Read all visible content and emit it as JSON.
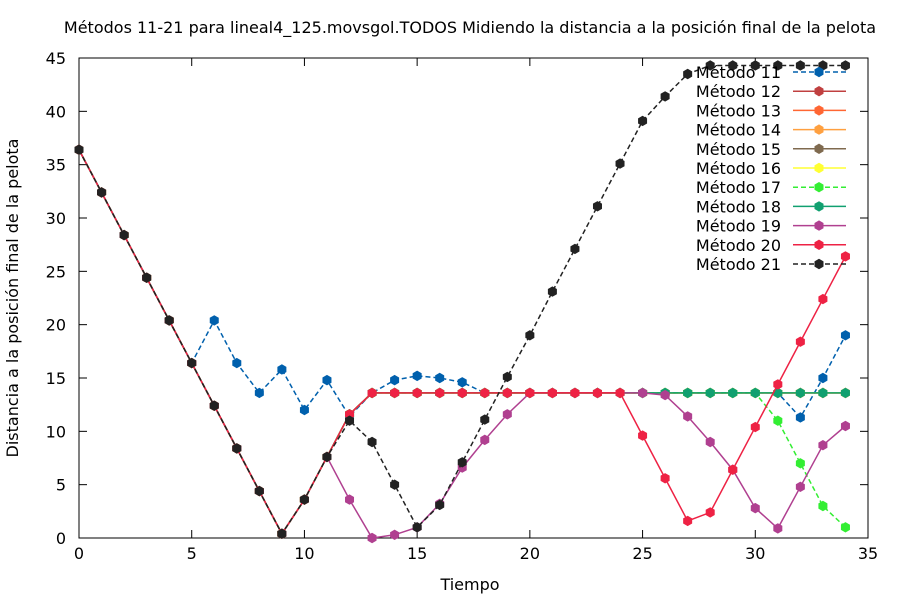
{
  "chart_data": {
    "type": "line",
    "title": "Métodos 11-21 para lineal4_125.movsgol.TODOS Midiendo la distancia a la posición final de la pelota",
    "xlabel": "Tiempo",
    "ylabel": "Distancia a la posición final de la pelota",
    "xlim": [
      0,
      35
    ],
    "ylim": [
      0,
      45
    ],
    "xticks": [
      0,
      5,
      10,
      15,
      20,
      25,
      30,
      35
    ],
    "yticks": [
      0,
      5,
      10,
      15,
      20,
      25,
      30,
      35,
      40,
      45
    ],
    "grid": false,
    "legend_position": "top-right",
    "series": [
      {
        "name": "Método 11",
        "color": "#0060ad",
        "dashed": true,
        "values": [
          36.4,
          32.4,
          28.4,
          24.4,
          20.4,
          16.4,
          20.4,
          16.4,
          13.6,
          15.8,
          12.0,
          14.8,
          11.4,
          13.6,
          14.8,
          15.2,
          15.0,
          14.6,
          13.6,
          13.6,
          13.6,
          13.6,
          13.6,
          13.6,
          13.6,
          13.6,
          13.6,
          13.6,
          13.6,
          13.6,
          13.6,
          13.6,
          11.3,
          15.0,
          19.0
        ]
      },
      {
        "name": "Método 12",
        "color": "#c04040",
        "dashed": false,
        "values": [
          36.4,
          32.4,
          28.4,
          24.4,
          20.4,
          16.4,
          12.4,
          8.4,
          4.4,
          0.4,
          3.6,
          7.6,
          11.6,
          13.6,
          13.6,
          13.6,
          13.6,
          13.6,
          13.6,
          13.6,
          13.6,
          13.6,
          13.6,
          13.6,
          13.6,
          13.6,
          13.6,
          13.6,
          13.6,
          13.6,
          13.6,
          13.6,
          13.6,
          13.6,
          13.6
        ]
      },
      {
        "name": "Método 13",
        "color": "#ff6633",
        "dashed": false,
        "values": [
          36.4,
          32.4,
          28.4,
          24.4,
          20.4,
          16.4,
          12.4,
          8.4,
          4.4,
          0.4,
          3.6,
          7.6,
          11.6,
          13.6,
          13.6,
          13.6,
          13.6,
          13.6,
          13.6,
          13.6,
          13.6,
          13.6,
          13.6,
          13.6,
          13.6,
          13.6,
          13.6,
          13.6,
          13.6,
          13.6,
          13.6,
          13.6,
          13.6,
          13.6,
          13.6
        ]
      },
      {
        "name": "Método 14",
        "color": "#ffa040",
        "dashed": false,
        "values": [
          36.4,
          32.4,
          28.4,
          24.4,
          20.4,
          16.4,
          12.4,
          8.4,
          4.4,
          0.4,
          3.6,
          7.6,
          11.6,
          13.6,
          13.6,
          13.6,
          13.6,
          13.6,
          13.6,
          13.6,
          13.6,
          13.6,
          13.6,
          13.6,
          13.6,
          13.6,
          13.6,
          13.6,
          13.6,
          13.6,
          13.6,
          13.6,
          13.6,
          13.6,
          13.6
        ]
      },
      {
        "name": "Método 15",
        "color": "#7f6a4f",
        "dashed": false,
        "values": [
          36.4,
          32.4,
          28.4,
          24.4,
          20.4,
          16.4,
          12.4,
          8.4,
          4.4,
          0.4,
          3.6,
          7.6,
          11.6,
          13.6,
          13.6,
          13.6,
          13.6,
          13.6,
          13.6,
          13.6,
          13.6,
          13.6,
          13.6,
          13.6,
          13.6,
          13.6,
          13.6,
          13.6,
          13.6,
          13.6,
          13.6,
          13.6,
          13.6,
          13.6,
          13.6
        ]
      },
      {
        "name": "Método 16",
        "color": "#ffff33",
        "dashed": false,
        "values": [
          36.4,
          32.4,
          28.4,
          24.4,
          20.4,
          16.4,
          12.4,
          8.4,
          4.4,
          0.4,
          3.6,
          7.6,
          11.6,
          13.6,
          13.6,
          13.6,
          13.6,
          13.6,
          13.6,
          13.6,
          13.6,
          13.6,
          13.6,
          13.6,
          13.6,
          13.6,
          13.6,
          13.6,
          13.6,
          13.6,
          13.6,
          13.6,
          13.6,
          13.6,
          13.6
        ]
      },
      {
        "name": "Método 17",
        "color": "#33ee33",
        "dashed": true,
        "values": [
          36.4,
          32.4,
          28.4,
          24.4,
          20.4,
          16.4,
          12.4,
          8.4,
          4.4,
          0.4,
          3.6,
          7.6,
          11.6,
          13.6,
          13.6,
          13.6,
          13.6,
          13.6,
          13.6,
          13.6,
          13.6,
          13.6,
          13.6,
          13.6,
          13.6,
          13.6,
          13.6,
          13.6,
          13.6,
          13.6,
          13.6,
          11.0,
          7.0,
          3.0,
          1.0
        ]
      },
      {
        "name": "Método 18",
        "color": "#11a070",
        "dashed": false,
        "values": [
          36.4,
          32.4,
          28.4,
          24.4,
          20.4,
          16.4,
          12.4,
          8.4,
          4.4,
          0.4,
          3.6,
          7.6,
          11.6,
          13.6,
          13.6,
          13.6,
          13.6,
          13.6,
          13.6,
          13.6,
          13.6,
          13.6,
          13.6,
          13.6,
          13.6,
          13.6,
          13.6,
          13.6,
          13.6,
          13.6,
          13.6,
          13.6,
          13.6,
          13.6,
          13.6
        ]
      },
      {
        "name": "Método 19",
        "color": "#b04090",
        "dashed": false,
        "values": [
          36.4,
          32.4,
          28.4,
          24.4,
          20.4,
          16.4,
          12.4,
          8.4,
          4.4,
          0.4,
          3.6,
          7.6,
          3.6,
          0.0,
          0.3,
          1.0,
          3.2,
          6.6,
          9.2,
          11.6,
          13.6,
          13.6,
          13.6,
          13.6,
          13.6,
          13.6,
          13.4,
          11.4,
          9.0,
          6.4,
          2.8,
          0.9,
          4.8,
          8.7,
          10.5
        ]
      },
      {
        "name": "Método 20",
        "color": "#ee2244",
        "dashed": false,
        "values": [
          36.4,
          32.4,
          28.4,
          24.4,
          20.4,
          16.4,
          12.4,
          8.4,
          4.4,
          0.4,
          3.6,
          7.6,
          11.6,
          13.6,
          13.6,
          13.6,
          13.6,
          13.6,
          13.6,
          13.6,
          13.6,
          13.6,
          13.6,
          13.6,
          13.6,
          9.6,
          5.6,
          1.6,
          2.4,
          6.4,
          10.4,
          14.4,
          18.4,
          22.4,
          26.4
        ]
      },
      {
        "name": "Método 21",
        "color": "#222222",
        "dashed": true,
        "values": [
          36.4,
          32.4,
          28.4,
          24.4,
          20.4,
          16.4,
          12.4,
          8.4,
          4.4,
          0.4,
          3.6,
          7.6,
          11.0,
          9.0,
          5.0,
          1.0,
          3.1,
          7.1,
          11.1,
          15.1,
          19.0,
          23.1,
          27.1,
          31.1,
          35.1,
          39.1,
          41.4,
          43.5,
          44.3,
          44.3,
          44.3,
          44.3,
          44.3,
          44.3,
          44.3
        ]
      }
    ]
  }
}
